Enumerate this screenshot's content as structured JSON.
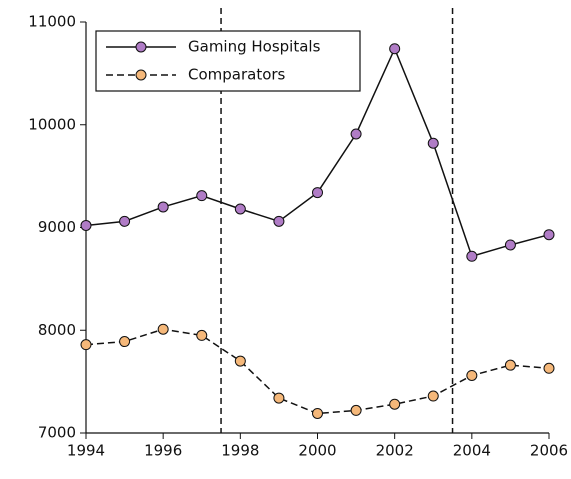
{
  "chart_data": {
    "type": "line",
    "x": [
      1994,
      1995,
      1996,
      1997,
      1998,
      1999,
      2000,
      2001,
      2002,
      2003,
      2004,
      2005,
      2006
    ],
    "series": [
      {
        "name": "Gaming Hospitals",
        "color": "#b07cc6",
        "dash": false,
        "values": [
          9020,
          9060,
          9200,
          9310,
          9180,
          9060,
          9340,
          9910,
          10740,
          9820,
          8720,
          8830,
          8930
        ]
      },
      {
        "name": "Comparators",
        "color": "#f5b87a",
        "dash": true,
        "values": [
          7860,
          7890,
          8010,
          7950,
          7700,
          7340,
          7190,
          7220,
          7280,
          7360,
          7560,
          7660,
          7630
        ]
      }
    ],
    "xlim": [
      1994,
      2006
    ],
    "ylim": [
      7000,
      11000
    ],
    "xticks": [
      1994,
      1996,
      1998,
      2000,
      2002,
      2004,
      2006
    ],
    "yticks": [
      7000,
      8000,
      9000,
      10000,
      11000
    ],
    "vlines": [
      1997.5,
      2003.5
    ],
    "grid": false,
    "legend": "upper left"
  }
}
